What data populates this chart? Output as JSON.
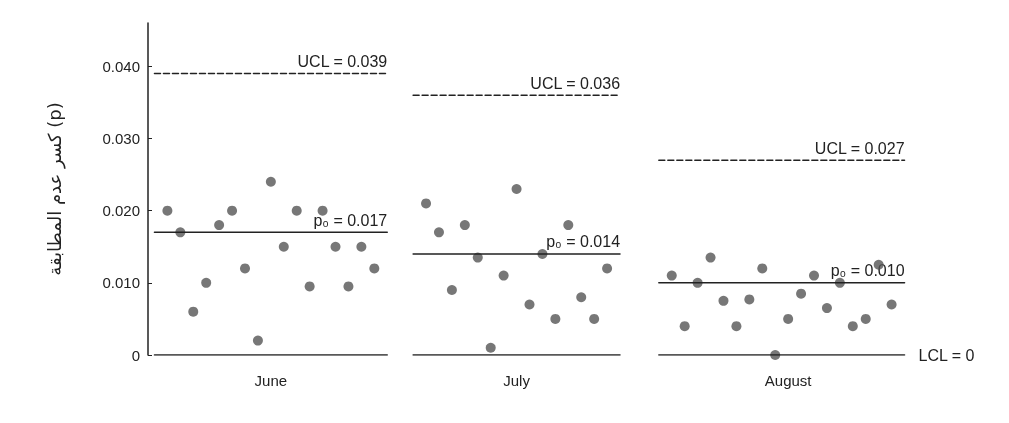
{
  "chart_data": {
    "type": "scatter",
    "ylabel": "كسر عدم المطابقة (p)",
    "categories": [
      null,
      null,
      null,
      null,
      null,
      null,
      null,
      null,
      null,
      "June",
      null,
      null,
      null,
      null,
      null,
      null,
      null,
      null,
      null,
      null,
      null,
      null,
      null,
      null,
      null,
      null,
      null,
      null,
      "July",
      null,
      null,
      null,
      null,
      null,
      null,
      null,
      null,
      null,
      null,
      null,
      null,
      null,
      null,
      null,
      null,
      null,
      null,
      null,
      null,
      "August",
      null,
      null,
      null,
      null,
      null,
      null,
      null,
      null,
      null
    ],
    "ylim": [
      0,
      0.046
    ],
    "yticks": [
      {
        "value": 0,
        "label": "0"
      },
      {
        "value": 0.01,
        "label": "0.010"
      },
      {
        "value": 0.02,
        "label": "0.020"
      },
      {
        "value": 0.03,
        "label": "0.030"
      },
      {
        "value": 0.04,
        "label": "0.040"
      }
    ],
    "grid": false,
    "series": [
      {
        "marker": "circle",
        "color": "#555555",
        "values": [
          null,
          0.02,
          0.017,
          0.006,
          0.01,
          0.018,
          0.02,
          0.012,
          0.002,
          0.024,
          0.015,
          0.02,
          0.0095,
          0.02,
          0.015,
          0.0095,
          0.015,
          0.012,
          null,
          null,
          null,
          0.021,
          0.017,
          0.009,
          0.018,
          0.0135,
          0.001,
          0.011,
          0.023,
          0.007,
          0.014,
          0.005,
          0.018,
          0.008,
          0.005,
          0.012,
          null,
          null,
          null,
          null,
          0.011,
          0.004,
          0.01,
          0.0135,
          0.0075,
          0.004,
          0.0077,
          0.012,
          0,
          0.005,
          0.0085,
          0.011,
          0.0065,
          0.01,
          0.004,
          0.005,
          0.0125,
          0.007,
          null
        ]
      },
      {
        "type": "line",
        "line_style": "dashed",
        "color": "#222222",
        "values": [
          0.039,
          0.039,
          0.039,
          0.039,
          0.039,
          0.039,
          0.039,
          0.039,
          0.039,
          0.039,
          0.039,
          0.039,
          0.039,
          0.039,
          0.039,
          0.039,
          0.039,
          0.039,
          0.039,
          null,
          null,
          null,
          null,
          null,
          null,
          null,
          null,
          null,
          null,
          null,
          null,
          null,
          null,
          null,
          null,
          null,
          null,
          null,
          null,
          null,
          null,
          null,
          null,
          null,
          null,
          null,
          null,
          null,
          null,
          null,
          null,
          null,
          null,
          null,
          null,
          null,
          null,
          null,
          null
        ]
      },
      {
        "type": "line",
        "line_style": "solid",
        "color": "#222222",
        "values": [
          0.017,
          0.017,
          0.017,
          0.017,
          0.017,
          0.017,
          0.017,
          0.017,
          0.017,
          0.017,
          0.017,
          0.017,
          0.017,
          0.017,
          0.017,
          0.017,
          0.017,
          0.017,
          0.017,
          null,
          null,
          null,
          null,
          null,
          null,
          null,
          null,
          null,
          null,
          null,
          null,
          null,
          null,
          null,
          null,
          null,
          null,
          null,
          null,
          null,
          null,
          null,
          null,
          null,
          null,
          null,
          null,
          null,
          null,
          null,
          null,
          null,
          null,
          null,
          null,
          null,
          null,
          null,
          null
        ]
      },
      {
        "type": "line",
        "line_style": "solid",
        "color": "#222222",
        "values": [
          0,
          0,
          0,
          0,
          0,
          0,
          0,
          0,
          0,
          0,
          0,
          0,
          0,
          0,
          0,
          0,
          0,
          0,
          0,
          null,
          null,
          null,
          null,
          null,
          null,
          null,
          null,
          null,
          null,
          null,
          null,
          null,
          null,
          null,
          null,
          null,
          null,
          null,
          null,
          null,
          null,
          null,
          null,
          null,
          null,
          null,
          null,
          null,
          null,
          null,
          null,
          null,
          null,
          null,
          null,
          null,
          null,
          null,
          null
        ]
      },
      {
        "type": "line",
        "line_style": "dashed",
        "color": "#222222",
        "values": [
          null,
          null,
          null,
          null,
          null,
          null,
          null,
          null,
          null,
          null,
          null,
          null,
          null,
          null,
          null,
          null,
          null,
          null,
          null,
          null,
          0.036,
          0.036,
          0.036,
          0.036,
          0.036,
          0.036,
          0.036,
          0.036,
          0.036,
          0.036,
          0.036,
          0.036,
          0.036,
          0.036,
          0.036,
          0.036,
          0.036,
          null,
          null,
          null,
          null,
          null,
          null,
          null,
          null,
          null,
          null,
          null,
          null,
          null,
          null,
          null,
          null,
          null,
          null,
          null,
          null,
          null,
          null
        ]
      },
      {
        "type": "line",
        "line_style": "solid",
        "color": "#222222",
        "values": [
          null,
          null,
          null,
          null,
          null,
          null,
          null,
          null,
          null,
          null,
          null,
          null,
          null,
          null,
          null,
          null,
          null,
          null,
          null,
          null,
          0.014,
          0.014,
          0.014,
          0.014,
          0.014,
          0.014,
          0.014,
          0.014,
          0.014,
          0.014,
          0.014,
          0.014,
          0.014,
          0.014,
          0.014,
          0.014,
          0.014,
          null,
          null,
          null,
          null,
          null,
          null,
          null,
          null,
          null,
          null,
          null,
          null,
          null,
          null,
          null,
          null,
          null,
          null,
          null,
          null,
          null,
          null
        ]
      },
      {
        "type": "line",
        "line_style": "solid",
        "color": "#222222",
        "values": [
          null,
          null,
          null,
          null,
          null,
          null,
          null,
          null,
          null,
          null,
          null,
          null,
          null,
          null,
          null,
          null,
          null,
          null,
          null,
          null,
          0,
          0,
          0,
          0,
          0,
          0,
          0,
          0,
          0,
          0,
          0,
          0,
          0,
          0,
          0,
          0,
          0,
          null,
          null,
          null,
          null,
          null,
          null,
          null,
          null,
          null,
          null,
          null,
          null,
          null,
          null,
          null,
          null,
          null,
          null,
          null,
          null,
          null,
          null
        ]
      },
      {
        "type": "line",
        "line_style": "dashed",
        "color": "#222222",
        "values": [
          null,
          null,
          null,
          null,
          null,
          null,
          null,
          null,
          null,
          null,
          null,
          null,
          null,
          null,
          null,
          null,
          null,
          null,
          null,
          null,
          null,
          null,
          null,
          null,
          null,
          null,
          null,
          null,
          null,
          null,
          null,
          null,
          null,
          null,
          null,
          null,
          null,
          null,
          null,
          0.027,
          0.027,
          0.027,
          0.027,
          0.027,
          0.027,
          0.027,
          0.027,
          0.027,
          0.027,
          0.027,
          0.027,
          0.027,
          0.027,
          0.027,
          0.027,
          0.027,
          0.027,
          0.027,
          0.027
        ]
      },
      {
        "type": "line",
        "line_style": "solid",
        "color": "#222222",
        "values": [
          null,
          null,
          null,
          null,
          null,
          null,
          null,
          null,
          null,
          null,
          null,
          null,
          null,
          null,
          null,
          null,
          null,
          null,
          null,
          null,
          null,
          null,
          null,
          null,
          null,
          null,
          null,
          null,
          null,
          null,
          null,
          null,
          null,
          null,
          null,
          null,
          null,
          null,
          null,
          0.01,
          0.01,
          0.01,
          0.01,
          0.01,
          0.01,
          0.01,
          0.01,
          0.01,
          0.01,
          0.01,
          0.01,
          0.01,
          0.01,
          0.01,
          0.01,
          0.01,
          0.01,
          0.01,
          0.01
        ]
      },
      {
        "type": "line",
        "line_style": "solid",
        "color": "#222222",
        "values": [
          null,
          null,
          null,
          null,
          null,
          null,
          null,
          null,
          null,
          null,
          null,
          null,
          null,
          null,
          null,
          null,
          null,
          null,
          null,
          null,
          null,
          null,
          null,
          null,
          null,
          null,
          null,
          null,
          null,
          null,
          null,
          null,
          null,
          null,
          null,
          null,
          null,
          null,
          null,
          0,
          0,
          0,
          0,
          0,
          0,
          0,
          0,
          0,
          0,
          0,
          0,
          0,
          0,
          0,
          0,
          0,
          0,
          0,
          0
        ]
      }
    ],
    "annotations": [
      {
        "text": "UCL = 0.039",
        "x": "June",
        "y": 0.039
      },
      {
        "text": "p₀ = 0.017",
        "x": "June",
        "y": 0.017
      },
      {
        "text": "UCL = 0.036",
        "x": "July",
        "y": 0.036
      },
      {
        "text": "p₀ = 0.014",
        "x": "July",
        "y": 0.014
      },
      {
        "text": "UCL = 0.027",
        "x": "August",
        "y": 0.027
      },
      {
        "text": "p₀ = 0.010",
        "x": "August",
        "y": 0.01
      },
      "LCL = 0"
    ]
  }
}
